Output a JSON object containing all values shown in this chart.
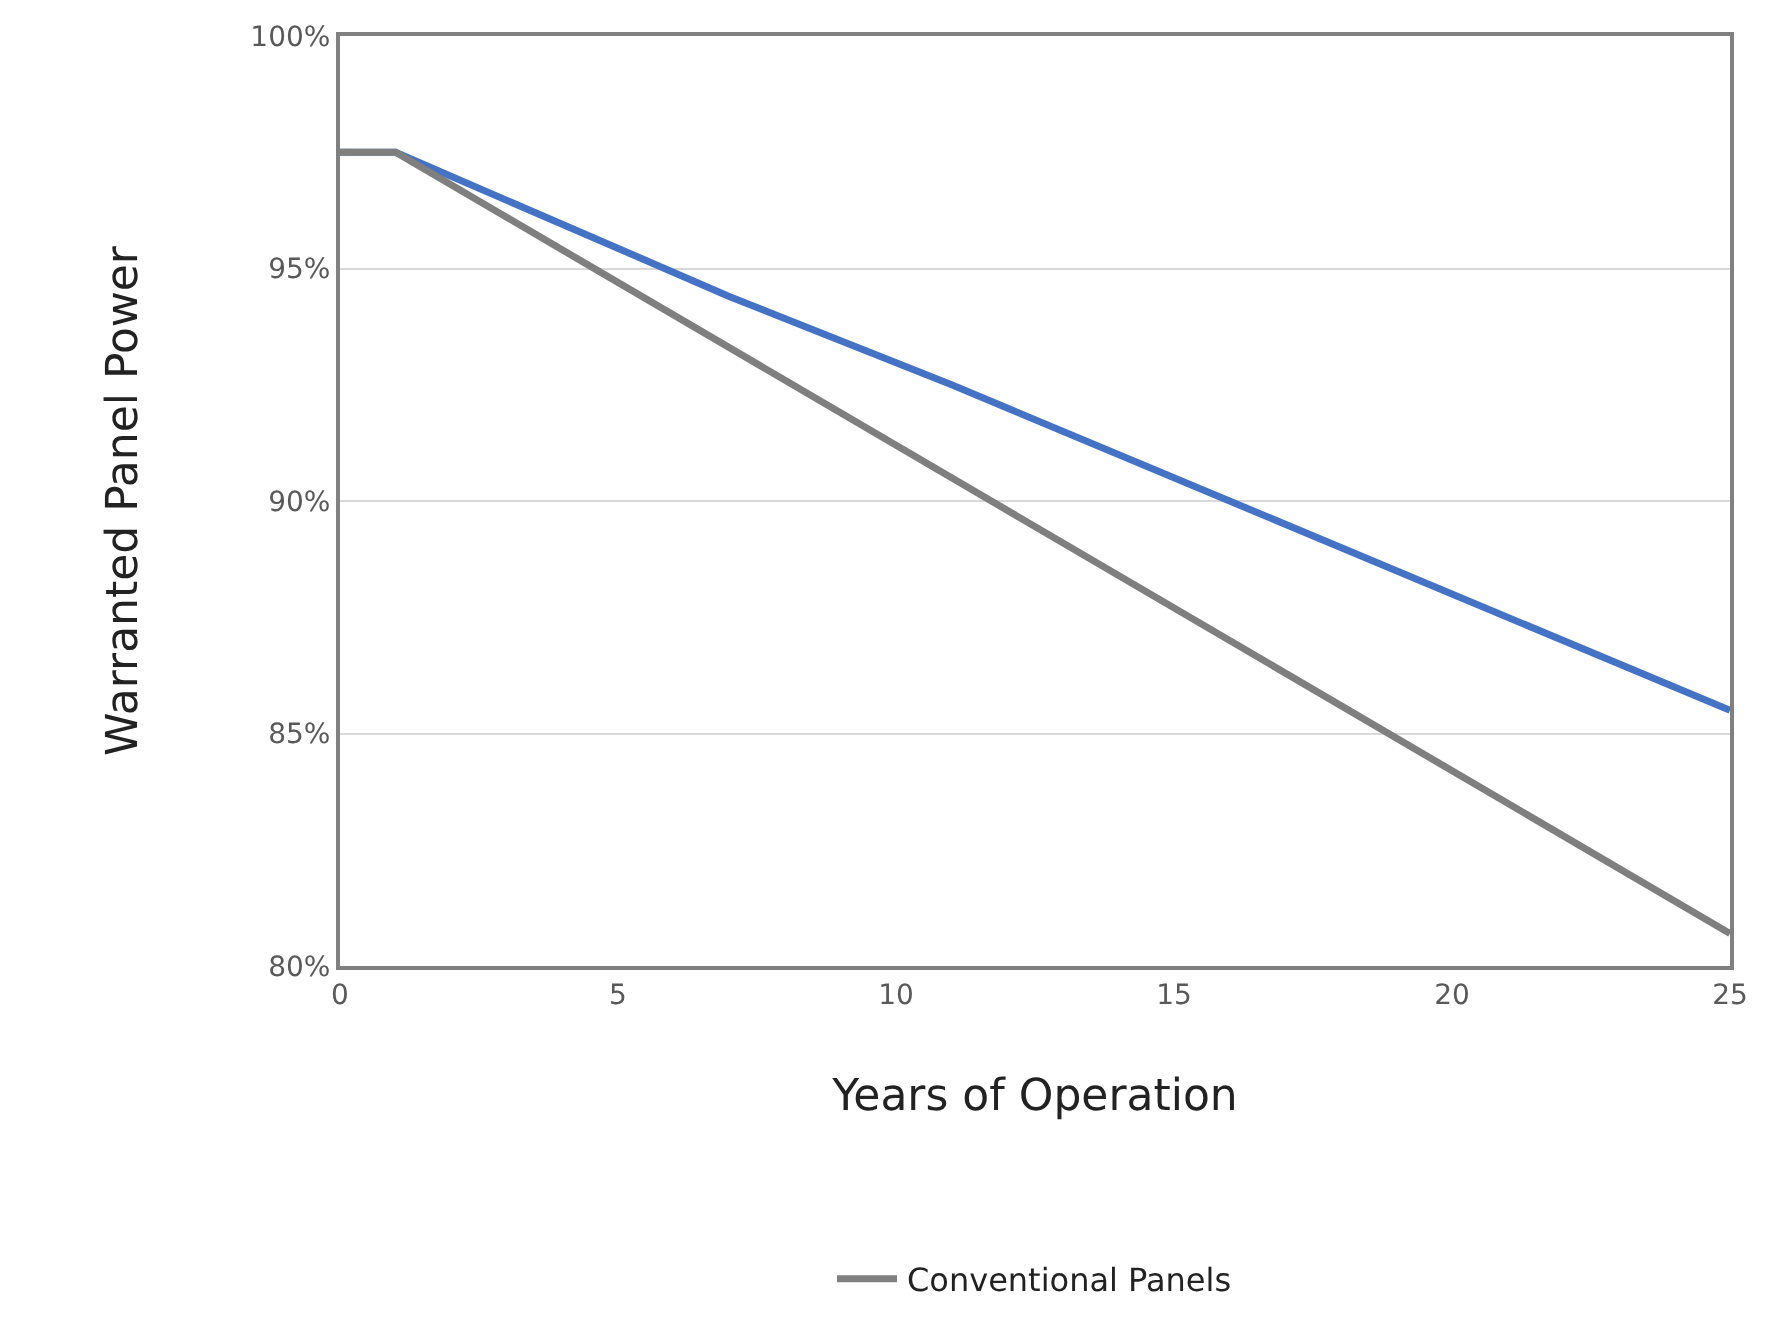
{
  "chart_data": {
    "type": "line",
    "xlabel": "Years of Operation",
    "ylabel": "Warranted Panel Power",
    "x": [
      0,
      1,
      7,
      11,
      12,
      25
    ],
    "series": [
      {
        "color": "#4472c4",
        "values": [
          97.5,
          97.5,
          94.4,
          92.5,
          92.0,
          85.5
        ]
      },
      {
        "name": "Conventional Panels",
        "color": "#7f7f7f",
        "x": [
          0,
          1,
          25
        ],
        "values": [
          97.5,
          97.5,
          80.7
        ]
      }
    ],
    "xlim": [
      0,
      25
    ],
    "xticks": [
      0,
      5,
      10,
      15,
      20,
      25
    ],
    "ylim": [
      80,
      100
    ],
    "yticks": [
      {
        "value": 80,
        "label": "80%"
      },
      {
        "value": 85,
        "label": "85%"
      },
      {
        "value": 90,
        "label": "90%"
      },
      {
        "value": 95,
        "label": "95%"
      },
      {
        "value": 100,
        "label": "100%"
      }
    ],
    "grid": "y",
    "legend": "bottom",
    "marker": "none",
    "line_style": "solid"
  }
}
